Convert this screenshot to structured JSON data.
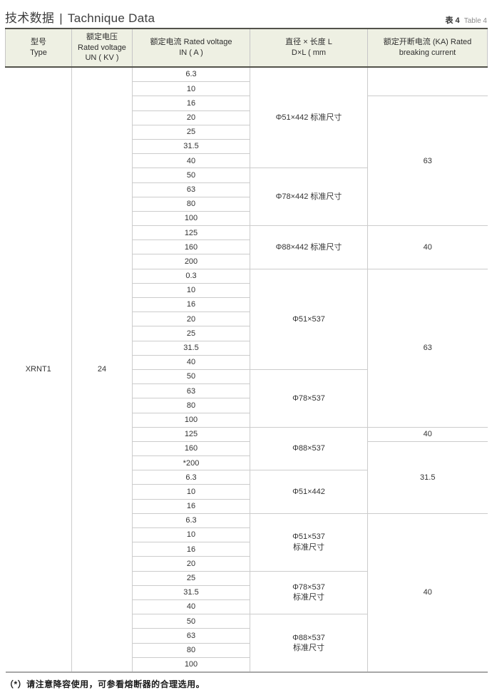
{
  "page": {
    "title_zh": "技术数据",
    "title_sep": "|",
    "title_en": "Tachnique Data",
    "table_tag_zh": "表 4",
    "table_tag_en": "Table 4",
    "footnote": "（*）请注意降容使用，可参看熔断器的合理选用。"
  },
  "colors": {
    "header_bg": "#eef0e3",
    "dark_rule": "#52524a",
    "grid_line": "#cccccc",
    "table_bottom_rule": "#a8a8a8",
    "text": "#333333"
  },
  "table": {
    "headers": {
      "type": {
        "l1": "型号",
        "l2": "Type"
      },
      "voltage": {
        "l1": "额定电压",
        "l2": "Rated voltage",
        "l3": "UN ( KV )"
      },
      "current": {
        "l1": "额定电流 Rated voltage",
        "l2": "IN ( A )"
      },
      "dimension": {
        "l1": "直径 × 长度 L",
        "l2": "D×L ( mm"
      },
      "breaking": {
        "l1": "额定开断电流 (KA) Rated",
        "l2": "breaking current"
      }
    },
    "type_value": "XRNT1",
    "voltage_value": "24",
    "current_rows": [
      "6.3",
      "10",
      "16",
      "20",
      "25",
      "31.5",
      "40",
      "50",
      "63",
      "80",
      "100",
      "125",
      "160",
      "200",
      "0.3",
      "10",
      "16",
      "20",
      "25",
      "31.5",
      "40",
      "50",
      "63",
      "80",
      "100",
      "125",
      "160",
      "*200",
      "6.3",
      "10",
      "16",
      "6.3",
      "10",
      "16",
      "20",
      "25",
      "31.5",
      "40",
      "50",
      "63",
      "80",
      "100"
    ],
    "dimension_groups": [
      {
        "rows": 7,
        "line1": "Φ51×442 标准尺寸",
        "line2": ""
      },
      {
        "rows": 4,
        "line1": "Φ78×442 标准尺寸",
        "line2": ""
      },
      {
        "rows": 3,
        "line1": "Φ88×442 标准尺寸",
        "line2": ""
      },
      {
        "rows": 7,
        "line1": "Φ51×537",
        "line2": ""
      },
      {
        "rows": 4,
        "line1": "Φ78×537",
        "line2": ""
      },
      {
        "rows": 3,
        "line1": "Φ88×537",
        "line2": ""
      },
      {
        "rows": 3,
        "line1": "Φ51×442",
        "line2": ""
      },
      {
        "rows": 4,
        "line1": "Φ51×537",
        "line2": "标准尺寸"
      },
      {
        "rows": 3,
        "line1": "Φ78×537",
        "line2": "标准尺寸"
      },
      {
        "rows": 4,
        "line1": "Φ88×537",
        "line2": "标准尺寸"
      }
    ],
    "breaking_groups": [
      {
        "rows": 2,
        "value": ""
      },
      {
        "rows": 9,
        "value": "63"
      },
      {
        "rows": 3,
        "value": "40"
      },
      {
        "rows": 11,
        "value": "63"
      },
      {
        "rows": 1,
        "value": "40"
      },
      {
        "rows": 5,
        "value": "31.5"
      },
      {
        "rows": 11,
        "value": "40"
      }
    ]
  }
}
